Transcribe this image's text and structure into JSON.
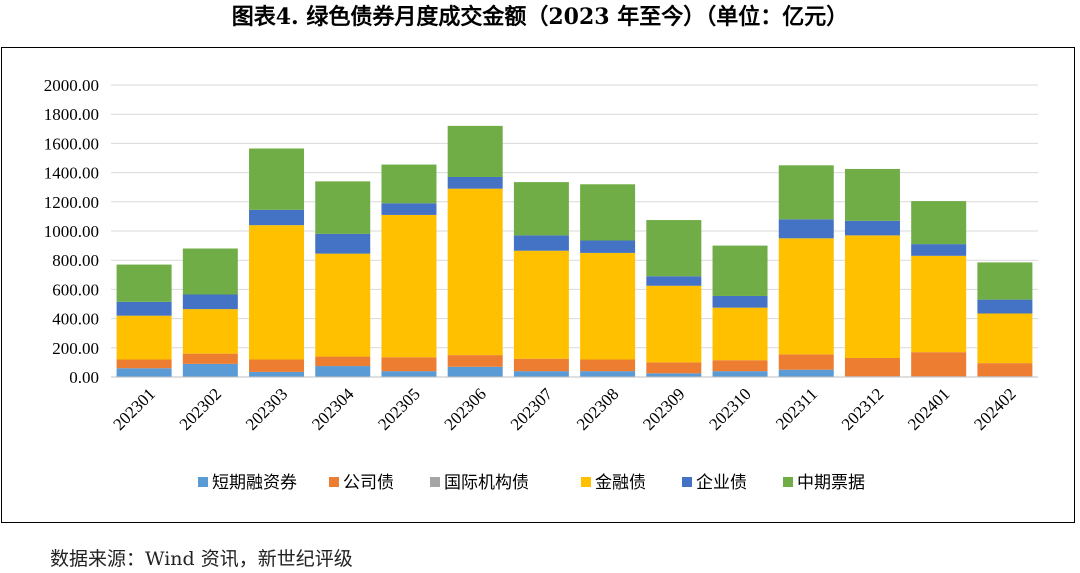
{
  "title": "图表4.   绿色债券月度成交金额（2023 年至今）（单位：亿元）",
  "source": "数据来源：Wind 资讯，新世纪评级",
  "chart_data": {
    "type": "bar",
    "stacked": true,
    "title": "图表4.   绿色债券月度成交金额（2023 年至今）（单位：亿元）",
    "categories": [
      "202301",
      "202302",
      "202303",
      "202304",
      "202305",
      "202306",
      "202307",
      "202308",
      "202309",
      "202310",
      "202311",
      "202312",
      "202401",
      "202402"
    ],
    "ylim": [
      0,
      2000
    ],
    "yticks": [
      "0.00",
      "200.00",
      "400.00",
      "600.00",
      "800.00",
      "1000.00",
      "1200.00",
      "1400.00",
      "1600.00",
      "1800.00",
      "2000.00"
    ],
    "grid": true,
    "legend_position": "bottom",
    "series": [
      {
        "name": "短期融资券",
        "color": "#5B9BD5",
        "values": [
          60,
          90,
          35,
          75,
          40,
          70,
          40,
          40,
          25,
          40,
          50,
          5,
          5,
          5
        ]
      },
      {
        "name": "公司债",
        "color": "#ED7D31",
        "values": [
          60,
          70,
          85,
          65,
          95,
          80,
          85,
          80,
          75,
          75,
          105,
          125,
          165,
          90
        ]
      },
      {
        "name": "国际机构债",
        "color": "#A5A5A5",
        "values": [
          0,
          0,
          0,
          0,
          0,
          0,
          0,
          0,
          0,
          0,
          0,
          0,
          0,
          0
        ]
      },
      {
        "name": "金融债",
        "color": "#FFC000",
        "values": [
          300,
          305,
          920,
          705,
          975,
          1140,
          740,
          730,
          525,
          360,
          795,
          840,
          660,
          340
        ]
      },
      {
        "name": "企业债",
        "color": "#4472C4",
        "values": [
          95,
          100,
          105,
          135,
          80,
          80,
          105,
          85,
          65,
          80,
          130,
          100,
          80,
          95
        ]
      },
      {
        "name": "中期票据",
        "color": "#70AD47",
        "values": [
          255,
          315,
          420,
          360,
          265,
          350,
          365,
          385,
          385,
          345,
          370,
          355,
          295,
          255
        ]
      }
    ]
  }
}
